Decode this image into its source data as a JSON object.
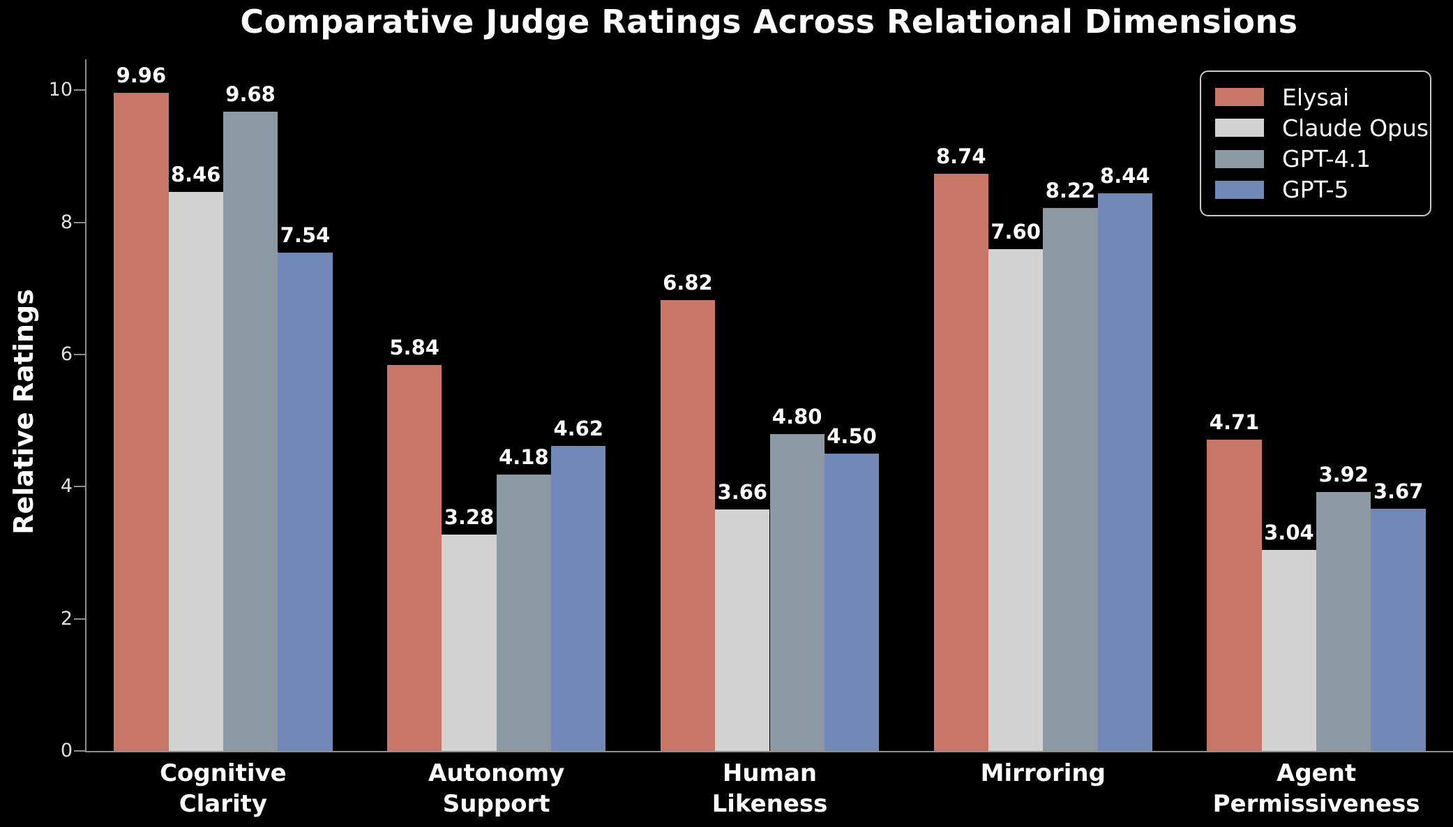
{
  "title": "Comparative Judge Ratings Across Relational Dimensions",
  "chart_data": {
    "type": "bar",
    "title": "Comparative Judge Ratings Across Relational Dimensions",
    "xlabel": "",
    "ylabel": "Relative Ratings",
    "categories": [
      "Cognitive\nClarity",
      "Autonomy\nSupport",
      "Human\nLikeness",
      "Mirroring",
      "Agent\nPermissiveness"
    ],
    "series": [
      {
        "name": "Elysai",
        "color": "#c87668",
        "values": [
          9.96,
          5.84,
          6.82,
          8.74,
          4.71
        ]
      },
      {
        "name": "Claude Opus",
        "color": "#d3d3d3",
        "values": [
          8.46,
          3.28,
          3.66,
          7.6,
          3.04
        ]
      },
      {
        "name": "GPT-4.1",
        "color": "#8c99a3",
        "values": [
          9.68,
          4.18,
          4.8,
          8.22,
          3.92
        ]
      },
      {
        "name": "GPT-5",
        "color": "#7289b8",
        "values": [
          7.54,
          4.62,
          4.5,
          8.44,
          3.67
        ]
      }
    ],
    "yticks": [
      0,
      2,
      4,
      6,
      8,
      10
    ],
    "ylim": [
      0,
      10.47
    ],
    "grid": false,
    "legend_position": "upper right",
    "value_labels": "2 decimal places above each bar",
    "background_color": "#000000",
    "text_color": "#ffffff",
    "axis_color": "#8f8f8f"
  }
}
